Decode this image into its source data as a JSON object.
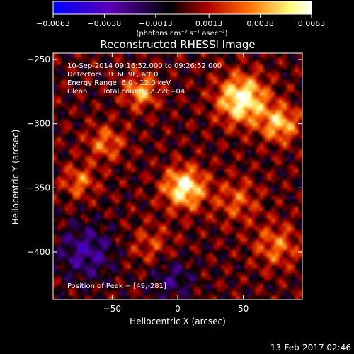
{
  "chart_data": {
    "type": "heatmap",
    "title": "Reconstructed RHESSI Image",
    "xlabel": "Heliocentric X (arcsec)",
    "ylabel": "Heliocentric Y (arcsec)",
    "xlim": [
      -95,
      95
    ],
    "ylim": [
      -437,
      -245
    ],
    "xticks": [
      -50,
      0,
      50
    ],
    "xtick_labels": [
      "−50",
      "0",
      "50"
    ],
    "yticks": [
      -250,
      -300,
      -350,
      -400
    ],
    "ytick_labels": [
      "−250",
      "−300",
      "−350",
      "−400"
    ],
    "colorbar": {
      "range": [
        -0.0063,
        0.0063
      ],
      "ticks": [
        -0.0063,
        -0.0038,
        -0.0013,
        0.0013,
        0.0038,
        0.0063
      ],
      "tick_labels": [
        "−0.0063",
        "−0.0038",
        "−0.0013",
        "0.0013",
        "0.0038",
        "0.0063"
      ],
      "units": "(photons cm⁻² s⁻¹ asec⁻²)",
      "colors": [
        "#0000ff",
        "#5a00b4",
        "#000000",
        "#b00000",
        "#ff6a00",
        "#ffff80",
        "#ffffff"
      ]
    },
    "sources": [
      {
        "x": 49,
        "y": -281,
        "amplitude": 0.0063,
        "sigma": 13
      },
      {
        "x": 78,
        "y": -300,
        "amplitude": 0.0045,
        "sigma": 10
      },
      {
        "x": 5,
        "y": -350,
        "amplitude": 0.006,
        "sigma": 11
      },
      {
        "x": -28,
        "y": -275,
        "amplitude": 0.004,
        "sigma": 9
      },
      {
        "x": -55,
        "y": -315,
        "amplitude": 0.003,
        "sigma": 10
      },
      {
        "x": -75,
        "y": -345,
        "amplitude": 0.003,
        "sigma": 9
      },
      {
        "x": 45,
        "y": -360,
        "amplitude": 0.0025,
        "sigma": 12
      },
      {
        "x": 75,
        "y": -395,
        "amplitude": 0.003,
        "sigma": 12
      },
      {
        "x": -20,
        "y": -395,
        "amplitude": 0.002,
        "sigma": 12
      },
      {
        "x": -70,
        "y": -400,
        "amplitude": -0.003,
        "sigma": 15
      },
      {
        "x": -5,
        "y": -420,
        "amplitude": -0.0022,
        "sigma": 12
      }
    ],
    "annotations": {
      "time_range": "10-Sep-2014 09:16:52.000 to 09:26:52.000",
      "detectors": "Detectors: 3F 6F 9F, Att 0",
      "energy": "Energy Range: 6.0 - 12.0 keV",
      "clean": "Clean",
      "total_counts": "Total counts: 2.22E+04",
      "peak": "Position of Peak = [49,-281]"
    },
    "date_stamp": "13-Feb-2017 02:46"
  }
}
